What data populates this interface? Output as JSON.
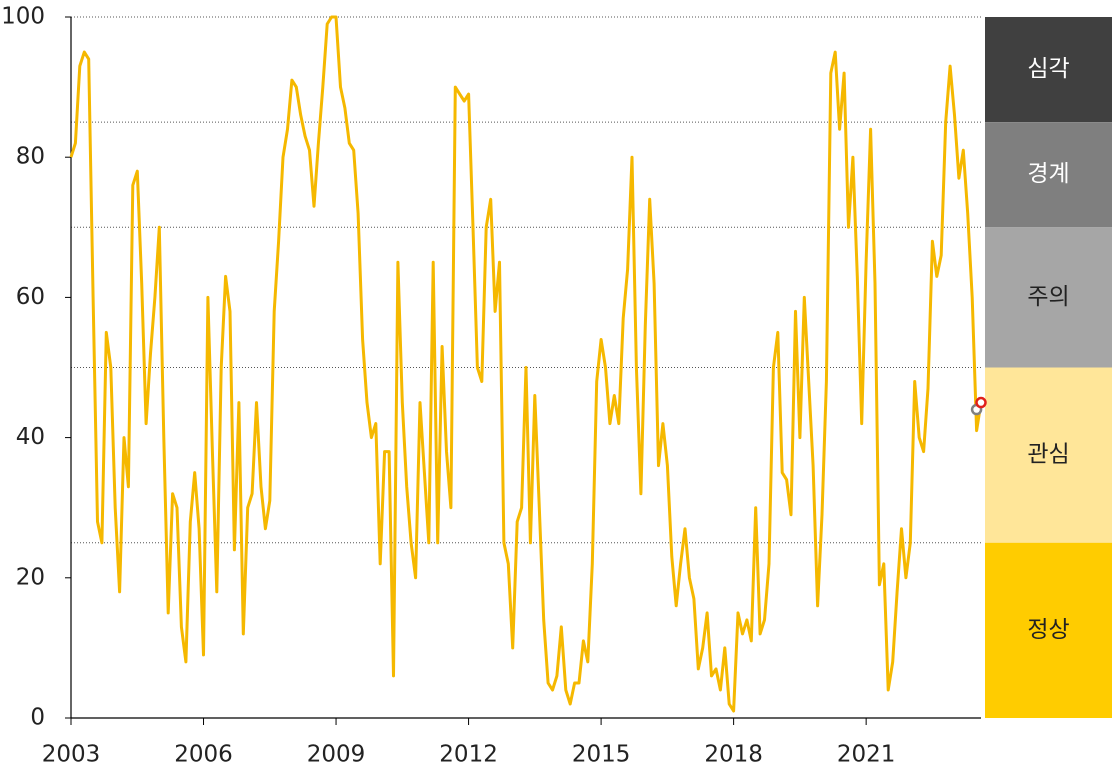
{
  "chart_data": {
    "type": "line",
    "x": [
      2003,
      2003.1,
      2003.2,
      2003.3,
      2003.4,
      2003.5,
      2003.6,
      2003.7,
      2003.8,
      2003.9,
      2004,
      2004.1,
      2004.2,
      2004.3,
      2004.4,
      2004.5,
      2004.6,
      2004.7,
      2004.8,
      2004.9,
      2005,
      2005.1,
      2005.2,
      2005.3,
      2005.4,
      2005.5,
      2005.6,
      2005.7,
      2005.8,
      2005.9,
      2006,
      2006.1,
      2006.2,
      2006.3,
      2006.4,
      2006.5,
      2006.6,
      2006.7,
      2006.8,
      2006.9,
      2007,
      2007.1,
      2007.2,
      2007.3,
      2007.4,
      2007.5,
      2007.6,
      2007.7,
      2007.8,
      2007.9,
      2008,
      2008.1,
      2008.2,
      2008.3,
      2008.4,
      2008.5,
      2008.6,
      2008.7,
      2008.8,
      2008.9,
      2009,
      2009.1,
      2009.2,
      2009.3,
      2009.4,
      2009.5,
      2009.6,
      2009.7,
      2009.8,
      2009.9,
      2010,
      2010.1,
      2010.2,
      2010.3,
      2010.4,
      2010.5,
      2010.6,
      2010.7,
      2010.8,
      2010.9,
      2011,
      2011.1,
      2011.2,
      2011.3,
      2011.4,
      2011.5,
      2011.6,
      2011.7,
      2011.8,
      2011.9,
      2012,
      2012.1,
      2012.2,
      2012.3,
      2012.4,
      2012.5,
      2012.6,
      2012.7,
      2012.8,
      2012.9,
      2013,
      2013.1,
      2013.2,
      2013.3,
      2013.4,
      2013.5,
      2013.6,
      2013.7,
      2013.8,
      2013.9,
      2014,
      2014.1,
      2014.2,
      2014.3,
      2014.4,
      2014.5,
      2014.6,
      2014.7,
      2014.8,
      2014.9,
      2015,
      2015.1,
      2015.2,
      2015.3,
      2015.4,
      2015.5,
      2015.6,
      2015.7,
      2015.8,
      2015.9,
      2016,
      2016.1,
      2016.2,
      2016.3,
      2016.4,
      2016.5,
      2016.6,
      2016.7,
      2016.8,
      2016.9,
      2017,
      2017.1,
      2017.2,
      2017.3,
      2017.4,
      2017.5,
      2017.6,
      2017.7,
      2017.8,
      2017.9,
      2018,
      2018.1,
      2018.2,
      2018.3,
      2018.4,
      2018.5,
      2018.6,
      2018.7,
      2018.8,
      2018.9,
      2019,
      2019.1,
      2019.2,
      2019.3,
      2019.4,
      2019.5,
      2019.6,
      2019.7,
      2019.8,
      2019.9,
      2020,
      2020.1,
      2020.2,
      2020.3,
      2020.4,
      2020.5,
      2020.6,
      2020.7,
      2020.8,
      2020.9,
      2021,
      2021.1,
      2021.2,
      2021.3,
      2021.4,
      2021.5,
      2021.6,
      2021.7,
      2021.8,
      2021.9,
      2022,
      2022.1,
      2022.2,
      2022.3,
      2022.4,
      2022.5,
      2022.6,
      2022.7,
      2022.8,
      2022.9,
      2023,
      2023.1,
      2023.2,
      2023.3,
      2023.4,
      2023.5,
      2023.6
    ],
    "series": [
      {
        "color": "#f5b800",
        "values": [
          80,
          82,
          93,
          95,
          94,
          60,
          28,
          25,
          55,
          50,
          30,
          18,
          40,
          33,
          76,
          78,
          62,
          42,
          52,
          60,
          70,
          40,
          15,
          32,
          30,
          13,
          8,
          28,
          35,
          27,
          9,
          60,
          38,
          18,
          50,
          63,
          58,
          24,
          45,
          12,
          30,
          32,
          45,
          33,
          27,
          31,
          58,
          68,
          80,
          84,
          91,
          90,
          86,
          83,
          81,
          73,
          82,
          90,
          99,
          100,
          100,
          90,
          87,
          82,
          81,
          72,
          54,
          45,
          40,
          42,
          22,
          38,
          38,
          6,
          65,
          45,
          33,
          25,
          20,
          45,
          35,
          25,
          65,
          25,
          53,
          38,
          30,
          90,
          89,
          88,
          89,
          70,
          50,
          48,
          70,
          74,
          58,
          65,
          25,
          22,
          10,
          28,
          30,
          50,
          25,
          46,
          30,
          14,
          5,
          4,
          6,
          13,
          4,
          2,
          5,
          5,
          11,
          8,
          22,
          48,
          54,
          50,
          42,
          46,
          42,
          57,
          64,
          80,
          50,
          32,
          56,
          74,
          62,
          36,
          42,
          36,
          23,
          16,
          22,
          27,
          20,
          17,
          7,
          10,
          15,
          6,
          7,
          4,
          10,
          2,
          1,
          15,
          12,
          14,
          11,
          30,
          12,
          14,
          22,
          50,
          55,
          35,
          34,
          29,
          58,
          40,
          60,
          48,
          36,
          16,
          29,
          48,
          92,
          95,
          84,
          92,
          70,
          80,
          63,
          42,
          65,
          84,
          62,
          19,
          22,
          4,
          8,
          18,
          27,
          20,
          25,
          48,
          40,
          38,
          47,
          68,
          63,
          66,
          85,
          93,
          86,
          77,
          81,
          72,
          60,
          41,
          45
        ]
      }
    ],
    "points": [
      {
        "x": 2023.5,
        "y": 44,
        "color": "#808080"
      },
      {
        "x": 2023.6,
        "y": 45,
        "color": "#e0201b"
      }
    ],
    "bands": [
      {
        "label": "심각",
        "from": 85,
        "to": 100,
        "color": "#404040"
      },
      {
        "label": "경계",
        "from": 70,
        "to": 85,
        "color": "#7f7f7f"
      },
      {
        "label": "주의",
        "from": 50,
        "to": 70,
        "color": "#a6a6a6"
      },
      {
        "label": "관심",
        "from": 25,
        "to": 50,
        "color": "#ffe699"
      },
      {
        "label": "정상",
        "from": 0,
        "to": 25,
        "color": "#ffcc00"
      }
    ],
    "xlim": [
      2003,
      2023.6
    ],
    "xticks": [
      2003,
      2006,
      2009,
      2012,
      2015,
      2018,
      2021
    ],
    "ylim": [
      0,
      100
    ],
    "yticks": [
      0,
      20,
      40,
      60,
      80,
      100
    ]
  }
}
